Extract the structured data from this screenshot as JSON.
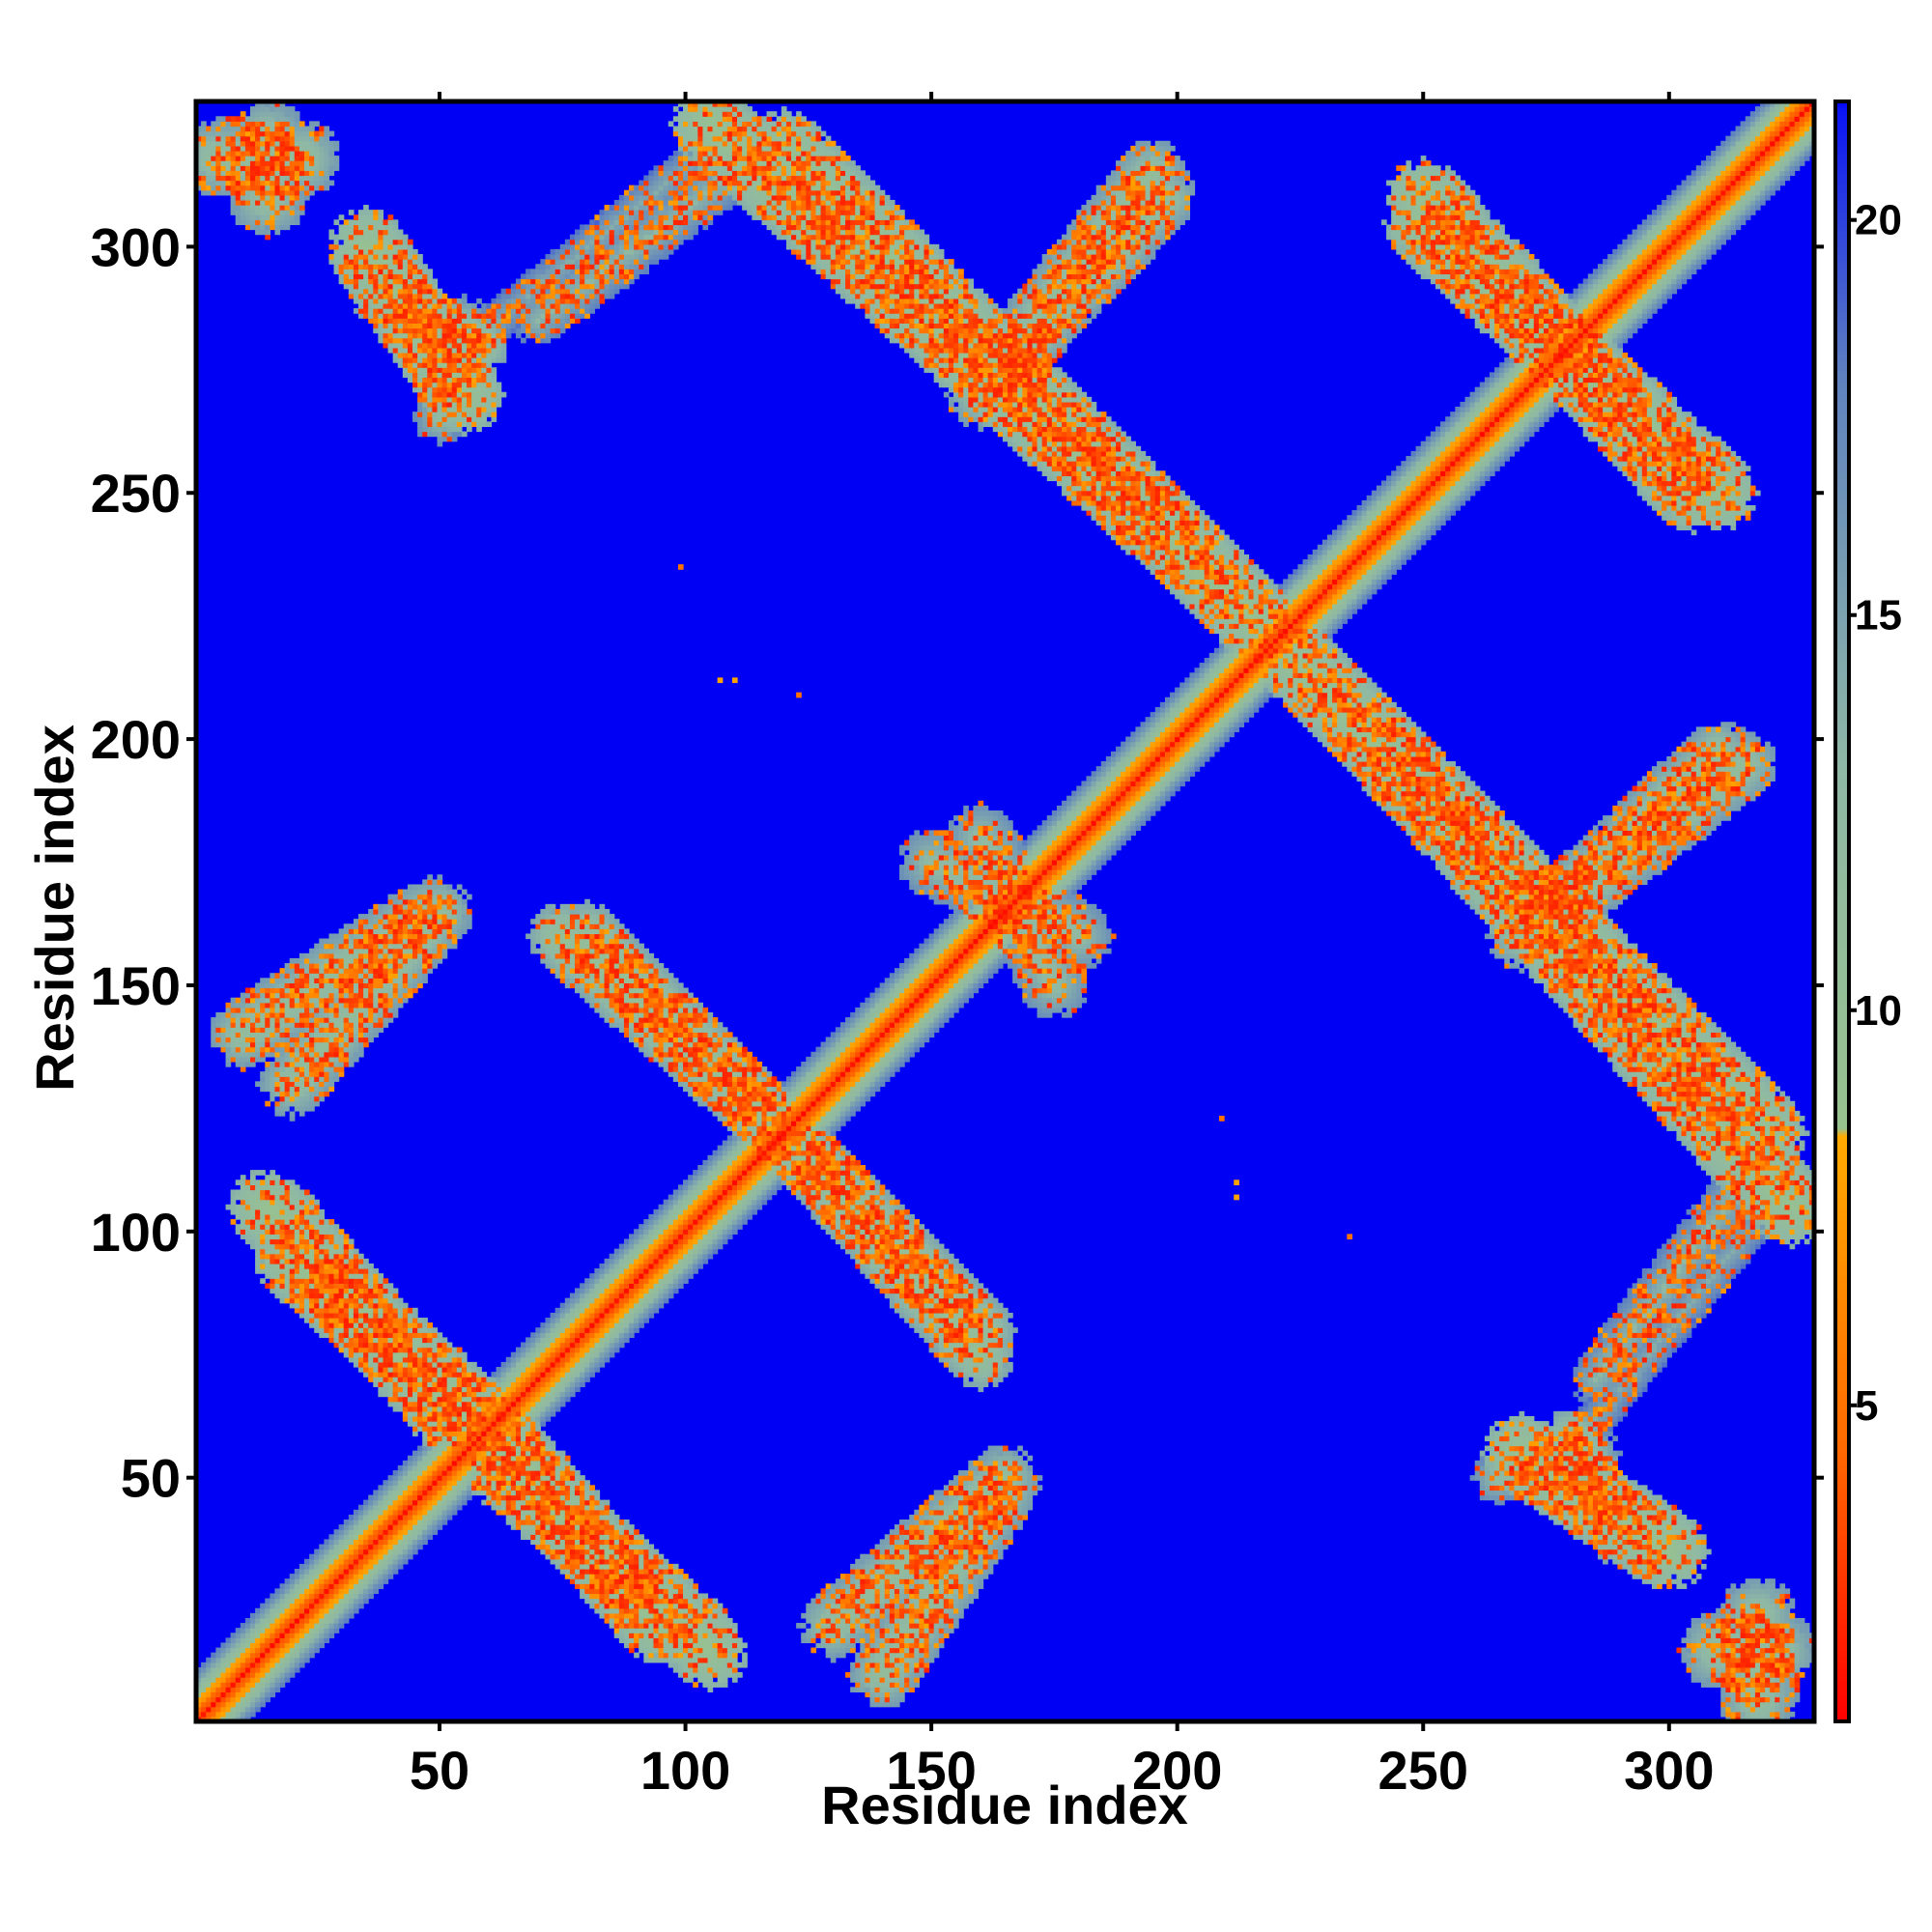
{
  "chart_data": {
    "type": "heatmap",
    "title": "",
    "xlabel": "Residue index",
    "ylabel": "Residue index",
    "xlim": [
      1,
      329
    ],
    "ylim": [
      1,
      329
    ],
    "x_ticks": [
      50,
      100,
      150,
      200,
      250,
      300
    ],
    "y_ticks": [
      50,
      100,
      150,
      200,
      250,
      300
    ],
    "x_tick_labels": [
      "50",
      "100",
      "150",
      "200",
      "250",
      "300"
    ],
    "y_tick_labels": [
      "50",
      "100",
      "150",
      "200",
      "250",
      "300"
    ],
    "matrix_symmetric": true,
    "value_range": [
      1,
      21.5
    ],
    "background_value": 21.5,
    "colorbar": {
      "label": "",
      "range": [
        1,
        21.5
      ],
      "ticks": [
        5,
        10,
        15,
        20
      ],
      "tick_labels": [
        "5",
        "10",
        "15",
        "20"
      ],
      "stops": [
        {
          "value": 1,
          "color": "#ff0000"
        },
        {
          "value": 4.5,
          "color": "#ff6a00"
        },
        {
          "value": 8.4,
          "color": "#ffaa00"
        },
        {
          "value": 8.5,
          "color": "#98c28e"
        },
        {
          "value": 13,
          "color": "#8fb8a5"
        },
        {
          "value": 18,
          "color": "#5f82bf"
        },
        {
          "value": 21.4,
          "color": "#0a14f4"
        },
        {
          "value": 21.5,
          "color": "#0000f5"
        }
      ]
    },
    "diagonal_band": {
      "description": "main diagonal i = j",
      "center_value": 1.5,
      "half_width_residues": 10
    },
    "contact_bands": [
      {
        "from": [
          5,
          318
        ],
        "to": [
          22,
          318
        ],
        "kind": "cluster",
        "half_width": 8,
        "value": 11
      },
      {
        "from": [
          38,
          290
        ],
        "to": [
          58,
          280
        ],
        "kind": "antiparallel",
        "half_width": 6,
        "value": 10
      },
      {
        "from": [
          55,
          285
        ],
        "to": [
          50,
          265
        ],
        "kind": "cluster",
        "half_width": 5,
        "value": 12
      },
      {
        "from": [
          58,
          282
        ],
        "to": [
          105,
          320
        ],
        "kind": "parallel",
        "half_width": 4,
        "value": 14
      },
      {
        "from": [
          105,
          325
        ],
        "to": [
          200,
          240
        ],
        "kind": "antiparallel",
        "half_width": 8,
        "value": 9
      },
      {
        "from": [
          165,
          275
        ],
        "to": [
          198,
          310
        ],
        "kind": "parallel",
        "half_width": 6,
        "value": 11
      },
      {
        "from": [
          250,
          305
        ],
        "to": [
          310,
          250
        ],
        "kind": "antiparallel",
        "half_width": 8,
        "value": 9
      },
      {
        "from": [
          20,
          95
        ],
        "to": [
          60,
          60
        ],
        "kind": "antiparallel",
        "half_width": 8,
        "value": 9
      },
      {
        "from": [
          60,
          55
        ],
        "to": [
          105,
          15
        ],
        "kind": "antiparallel",
        "half_width": 8,
        "value": 9
      },
      {
        "from": [
          10,
          140
        ],
        "to": [
          48,
          165
        ],
        "kind": "parallel",
        "half_width": 7,
        "value": 11
      },
      {
        "from": [
          75,
          160
        ],
        "to": [
          120,
          120
        ],
        "kind": "antiparallel",
        "half_width": 7,
        "value": 10
      },
      {
        "from": [
          120,
          120
        ],
        "to": [
          160,
          80
        ],
        "kind": "antiparallel",
        "half_width": 7,
        "value": 10
      },
      {
        "from": [
          130,
          20
        ],
        "to": [
          165,
          50
        ],
        "kind": "parallel",
        "half_width": 7,
        "value": 11
      },
      {
        "from": [
          150,
          175
        ],
        "to": [
          180,
          160
        ],
        "kind": "cluster",
        "half_width": 7,
        "value": 12
      },
      {
        "from": [
          220,
          220
        ],
        "to": [
          320,
          120
        ],
        "kind": "antiparallel",
        "half_width": 8,
        "value": 9
      },
      {
        "from": [
          270,
          160
        ],
        "to": [
          315,
          195
        ],
        "kind": "parallel",
        "half_width": 7,
        "value": 11
      },
      {
        "from": [
          315,
          110
        ],
        "to": [
          285,
          70
        ],
        "kind": "parallel",
        "half_width": 5,
        "value": 13
      },
      {
        "from": [
          270,
          55
        ],
        "to": [
          300,
          35
        ],
        "kind": "antiparallel",
        "half_width": 8,
        "value": 9
      },
      {
        "from": [
          310,
          15
        ],
        "to": [
          322,
          15
        ],
        "kind": "cluster",
        "half_width": 8,
        "value": 11
      }
    ],
    "isolated_contacts": [
      {
        "x": 99,
        "y": 235,
        "value": 5
      },
      {
        "x": 107,
        "y": 212,
        "value": 8
      },
      {
        "x": 110,
        "y": 212,
        "value": 8
      },
      {
        "x": 123,
        "y": 209,
        "value": 5
      },
      {
        "x": 209,
        "y": 123,
        "value": 5
      },
      {
        "x": 212,
        "y": 110,
        "value": 8
      },
      {
        "x": 212,
        "y": 107,
        "value": 8
      },
      {
        "x": 235,
        "y": 99,
        "value": 5
      }
    ]
  }
}
